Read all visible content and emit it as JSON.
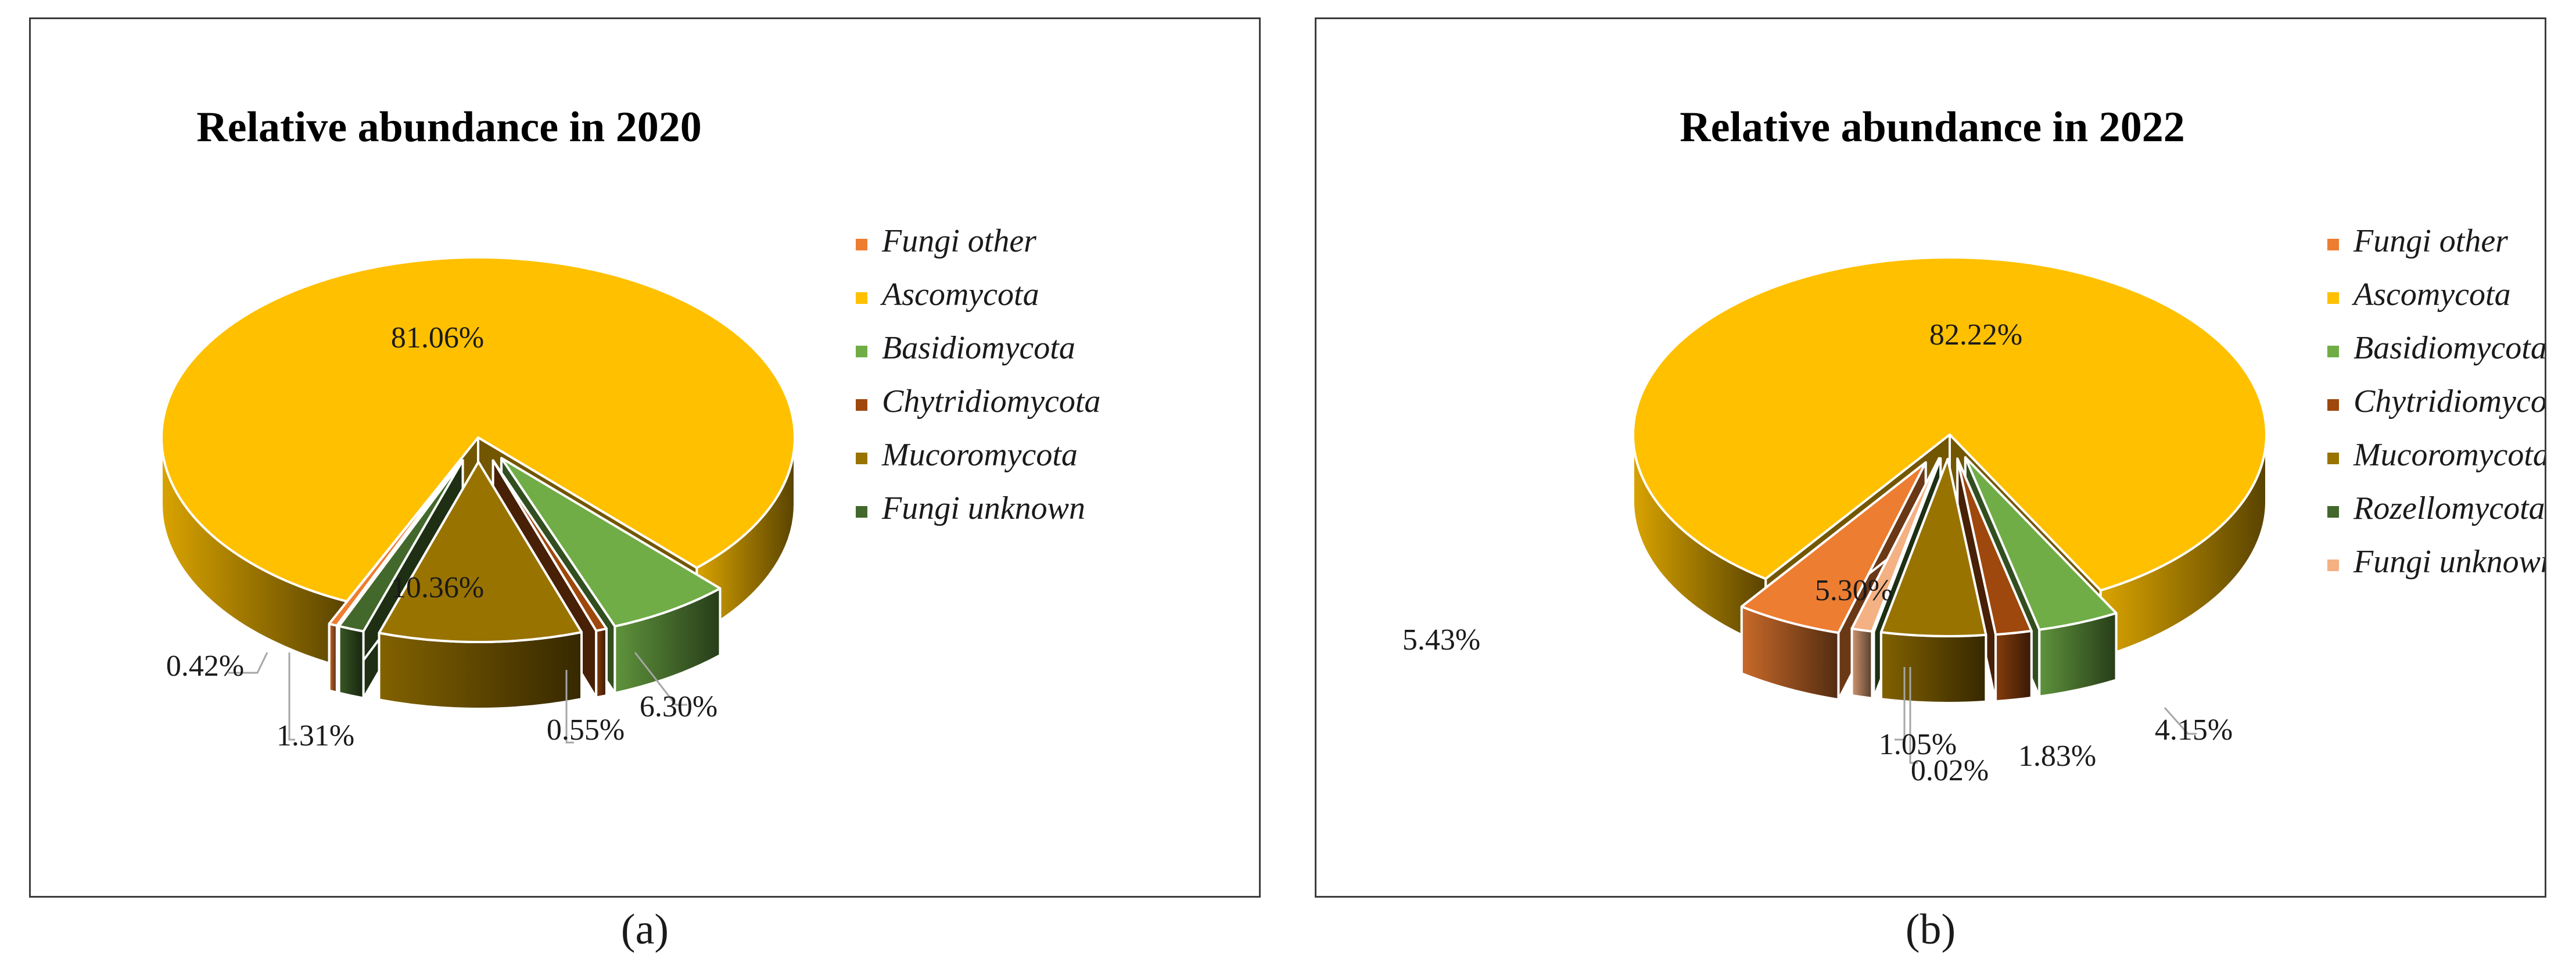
{
  "captions": [
    "(a)",
    "(b)"
  ],
  "chart_data": [
    {
      "type": "pie",
      "style": "3d-exploded",
      "title": "Relative abundance in 2020",
      "legend_position": "right",
      "categories": [
        "Fungi other",
        "Ascomycota",
        "Basidiomycota",
        "Chytridiomycota",
        "Mucoromycota",
        "Fungi unknown"
      ],
      "values": [
        0.42,
        81.06,
        6.3,
        0.55,
        10.36,
        1.31
      ],
      "value_labels": [
        "0.42%",
        "81.06%",
        "6.30%",
        "0.55%",
        "10.36%",
        "1.31%"
      ],
      "colors": [
        "#ED7D31",
        "#FFC000",
        "#70AD47",
        "#9E480E",
        "#997300",
        "#43682B"
      ]
    },
    {
      "type": "pie",
      "style": "3d-exploded",
      "title": "Relative abundance in 2022",
      "legend_position": "right",
      "categories": [
        "Fungi other",
        "Ascomycota",
        "Basidiomycota",
        "Chytridiomycota",
        "Mucoromycota",
        "Rozellomycota",
        "Fungi unknown"
      ],
      "values": [
        5.43,
        82.22,
        4.15,
        1.83,
        5.3,
        0.02,
        1.05
      ],
      "value_labels": [
        "5.43%",
        "82.22%",
        "4.15%",
        "1.83%",
        "5.30%",
        "0.02%",
        "1.05%"
      ],
      "colors": [
        "#ED7D31",
        "#FFC000",
        "#70AD47",
        "#9E480E",
        "#997300",
        "#43682B",
        "#F4B183"
      ]
    }
  ]
}
